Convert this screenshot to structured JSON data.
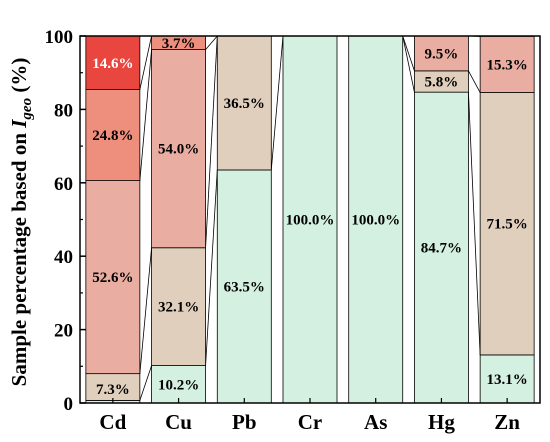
{
  "chart_data": {
    "type": "bar",
    "stacked": true,
    "ylabel_prefix": "Sample percentage based on ",
    "ylabel_italic": "I",
    "ylabel_subscript": "geo",
    "ylabel_suffix": " (%)",
    "xlabel": "",
    "ylim": [
      0,
      100
    ],
    "yticks": [
      0,
      20,
      40,
      60,
      80,
      100
    ],
    "categories": [
      "Cd",
      "Cu",
      "Pb",
      "Cr",
      "As",
      "Hg",
      "Zn"
    ],
    "level_colors": [
      "#d4f0e0",
      "#e0cfbd",
      "#e9ada1",
      "#ee8e7c",
      "#e8463e"
    ],
    "series": [
      {
        "values": [
          0.7,
          10.2,
          63.5,
          100.0,
          100.0,
          84.7,
          13.1
        ],
        "labels": [
          "",
          "10.2%",
          "63.5%",
          "100.0%",
          "100.0%",
          "84.7%",
          "13.1%"
        ]
      },
      {
        "values": [
          7.3,
          32.1,
          36.5,
          0,
          0,
          5.8,
          71.5
        ],
        "labels": [
          "7.3%",
          "32.1%",
          "36.5%",
          "",
          "",
          "5.8%",
          "71.5%"
        ]
      },
      {
        "values": [
          52.6,
          54.0,
          0,
          0,
          0,
          9.5,
          15.3
        ],
        "labels": [
          "52.6%",
          "54.0%",
          "",
          "",
          "",
          "9.5%",
          "15.3%"
        ]
      },
      {
        "values": [
          24.8,
          3.7,
          0,
          0,
          0,
          0,
          0
        ],
        "labels": [
          "24.8%",
          "3.7%",
          "",
          "",
          "",
          "",
          ""
        ]
      },
      {
        "values": [
          14.6,
          0,
          0,
          0,
          0,
          0,
          0
        ],
        "labels": [
          "14.6%",
          "",
          "",
          "",
          "",
          "",
          ""
        ]
      }
    ]
  }
}
